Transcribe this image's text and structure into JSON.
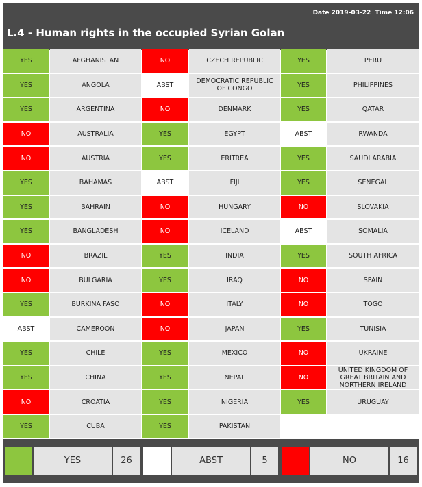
{
  "header": {
    "date": "Date 2019-03-22",
    "time": "Time 12:06",
    "title": "L.4 - Human rights in the occupied Syrian Golan"
  },
  "vote_colors": {
    "YES": "#8dc63f",
    "ABST": "#ffffff",
    "NO": "#ff0000"
  },
  "columns": [
    [
      {
        "vote": "YES",
        "country": "AFGHANISTAN"
      },
      {
        "vote": "YES",
        "country": "ANGOLA"
      },
      {
        "vote": "YES",
        "country": "ARGENTINA"
      },
      {
        "vote": "NO",
        "country": "AUSTRALIA"
      },
      {
        "vote": "NO",
        "country": "AUSTRIA"
      },
      {
        "vote": "YES",
        "country": "BAHAMAS"
      },
      {
        "vote": "YES",
        "country": "BAHRAIN"
      },
      {
        "vote": "YES",
        "country": "BANGLADESH"
      },
      {
        "vote": "NO",
        "country": "BRAZIL"
      },
      {
        "vote": "NO",
        "country": "BULGARIA"
      },
      {
        "vote": "YES",
        "country": "BURKINA FASO"
      },
      {
        "vote": "ABST",
        "country": "CAMEROON"
      },
      {
        "vote": "YES",
        "country": "CHILE"
      },
      {
        "vote": "YES",
        "country": "CHINA"
      },
      {
        "vote": "NO",
        "country": "CROATIA"
      },
      {
        "vote": "YES",
        "country": "CUBA"
      }
    ],
    [
      {
        "vote": "NO",
        "country": "CZECH REPUBLIC"
      },
      {
        "vote": "ABST",
        "country": "DEMOCRATIC REPUBLIC OF CONGO"
      },
      {
        "vote": "NO",
        "country": "DENMARK"
      },
      {
        "vote": "YES",
        "country": "EGYPT"
      },
      {
        "vote": "YES",
        "country": "ERITREA"
      },
      {
        "vote": "ABST",
        "country": "FIJI"
      },
      {
        "vote": "NO",
        "country": "HUNGARY"
      },
      {
        "vote": "NO",
        "country": "ICELAND"
      },
      {
        "vote": "YES",
        "country": "INDIA"
      },
      {
        "vote": "YES",
        "country": "IRAQ"
      },
      {
        "vote": "NO",
        "country": "ITALY"
      },
      {
        "vote": "NO",
        "country": "JAPAN"
      },
      {
        "vote": "YES",
        "country": "MEXICO"
      },
      {
        "vote": "YES",
        "country": "NEPAL"
      },
      {
        "vote": "YES",
        "country": "NIGERIA"
      },
      {
        "vote": "YES",
        "country": "PAKISTAN"
      }
    ],
    [
      {
        "vote": "YES",
        "country": "PERU"
      },
      {
        "vote": "YES",
        "country": "PHILIPPINES"
      },
      {
        "vote": "YES",
        "country": "QATAR"
      },
      {
        "vote": "ABST",
        "country": "RWANDA"
      },
      {
        "vote": "YES",
        "country": "SAUDI ARABIA"
      },
      {
        "vote": "YES",
        "country": "SENEGAL"
      },
      {
        "vote": "NO",
        "country": "SLOVAKIA"
      },
      {
        "vote": "ABST",
        "country": "SOMALIA"
      },
      {
        "vote": "YES",
        "country": "SOUTH AFRICA"
      },
      {
        "vote": "NO",
        "country": "SPAIN"
      },
      {
        "vote": "NO",
        "country": "TOGO"
      },
      {
        "vote": "YES",
        "country": "TUNISIA"
      },
      {
        "vote": "NO",
        "country": "UKRAINE"
      },
      {
        "vote": "NO",
        "country": "UNITED KINGDOM OF GREAT BRITAIN AND NORTHERN IRELAND"
      },
      {
        "vote": "YES",
        "country": "URUGUAY"
      }
    ]
  ],
  "totals": [
    {
      "label": "YES",
      "count": 26
    },
    {
      "label": "ABST",
      "count": 5
    },
    {
      "label": "NO",
      "count": 16
    }
  ]
}
